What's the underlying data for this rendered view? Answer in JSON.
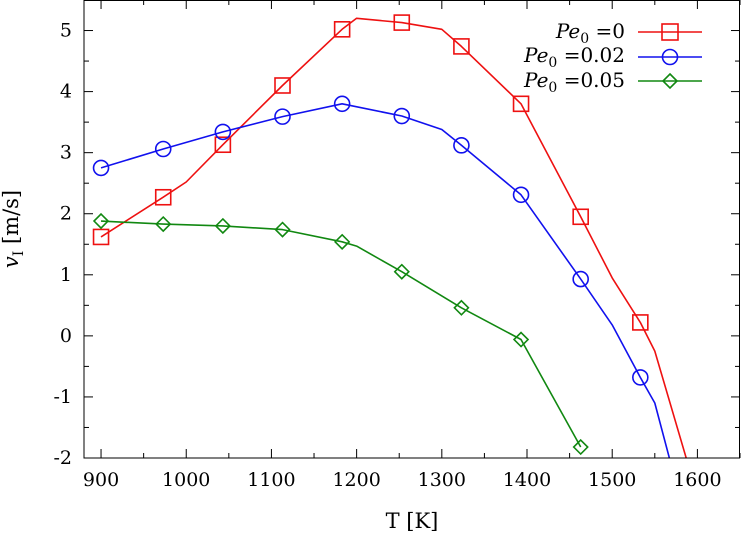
{
  "chart_data": {
    "type": "line",
    "title": "",
    "xlabel": "T [K]",
    "ylabel_main": "v",
    "ylabel_sub": "I",
    "ylabel_unit": " [m/s]",
    "xlim": [
      880,
      1650
    ],
    "ylim": [
      -2,
      5.5
    ],
    "xticks": [
      900,
      1000,
      1100,
      1200,
      1300,
      1400,
      1500,
      1600
    ],
    "yticks": [
      -2,
      -1,
      0,
      1,
      2,
      3,
      4,
      5
    ],
    "xtick_labels": [
      "900",
      "1000",
      "1100",
      "1200",
      "1300",
      "1400",
      "1500",
      "1600"
    ],
    "ytick_labels": [
      "-2",
      "-1",
      "0",
      "1",
      "2",
      "3",
      "4",
      "5"
    ],
    "grid": false,
    "legend_position": "top-right",
    "series": [
      {
        "name_base": "Pe",
        "name_sub": "0",
        "name_value": " =0",
        "color": "#ee1111",
        "marker": "square",
        "line_x": [
          900,
          973,
          1000,
          1043,
          1113,
          1183,
          1200,
          1253,
          1300,
          1323,
          1393,
          1463,
          1500,
          1533,
          1550,
          1590
        ],
        "line_y": [
          1.62,
          2.27,
          2.52,
          3.13,
          4.1,
          5.02,
          5.2,
          5.13,
          5.02,
          4.74,
          3.8,
          1.95,
          0.95,
          0.22,
          -0.25,
          -2.15
        ],
        "marker_x": [
          900,
          973,
          1043,
          1113,
          1183,
          1253,
          1323,
          1393,
          1463,
          1533
        ],
        "marker_y": [
          1.62,
          2.27,
          3.13,
          4.1,
          5.02,
          5.13,
          4.74,
          3.8,
          1.95,
          0.22
        ]
      },
      {
        "name_base": "Pe",
        "name_sub": "0",
        "name_value": " =0.02",
        "color": "#1111ee",
        "marker": "circle",
        "line_x": [
          900,
          973,
          1043,
          1113,
          1183,
          1253,
          1300,
          1323,
          1393,
          1463,
          1500,
          1533,
          1550,
          1570
        ],
        "line_y": [
          2.75,
          3.06,
          3.34,
          3.59,
          3.8,
          3.6,
          3.38,
          3.12,
          2.31,
          0.93,
          0.18,
          -0.68,
          -1.1,
          -2.15
        ],
        "marker_x": [
          900,
          973,
          1043,
          1113,
          1183,
          1253,
          1323,
          1393,
          1463,
          1533
        ],
        "marker_y": [
          2.75,
          3.06,
          3.34,
          3.59,
          3.8,
          3.6,
          3.12,
          2.31,
          0.93,
          -0.68
        ]
      },
      {
        "name_base": "Pe",
        "name_sub": "0",
        "name_value": " =0.05",
        "color": "#118811",
        "marker": "diamond",
        "line_x": [
          900,
          973,
          1043,
          1113,
          1183,
          1200,
          1253,
          1323,
          1393,
          1463
        ],
        "line_y": [
          1.88,
          1.83,
          1.8,
          1.74,
          1.54,
          1.47,
          1.05,
          0.46,
          -0.06,
          -1.82
        ],
        "marker_x": [
          900,
          973,
          1043,
          1113,
          1183,
          1253,
          1323,
          1393,
          1463
        ],
        "marker_y": [
          1.88,
          1.83,
          1.8,
          1.74,
          1.54,
          1.05,
          0.46,
          -0.06,
          -1.82
        ]
      }
    ]
  }
}
